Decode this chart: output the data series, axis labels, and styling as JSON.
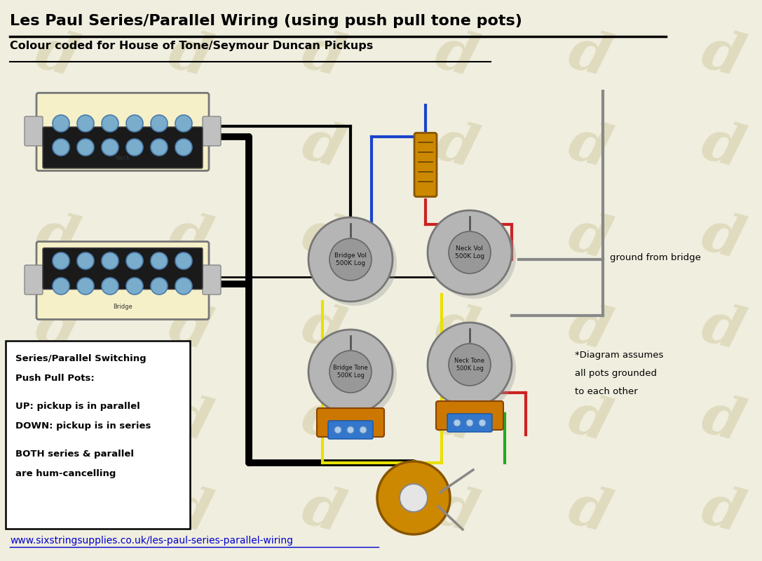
{
  "title": "Les Paul Series/Parallel Wiring (using push pull tone pots)",
  "subtitle": "Colour coded for House of Tone/Seymour Duncan Pickups",
  "url": "www.sixstringsupplies.co.uk/les-paul-series-parallel-wiring",
  "bg_color": "#f0eedf",
  "watermark_color": "#ddd8b8",
  "text_box_lines": [
    "Series/Parallel Switching",
    "Push Pull Pots:",
    "",
    "UP: pickup is in parallel",
    "DOWN: pickup is in series",
    "",
    "BOTH series & parallel",
    "are hum-cancelling"
  ],
  "ground_text": "ground from bridge",
  "note_lines": [
    "*Diagram assumes",
    "all pots grounded",
    "to each other"
  ]
}
